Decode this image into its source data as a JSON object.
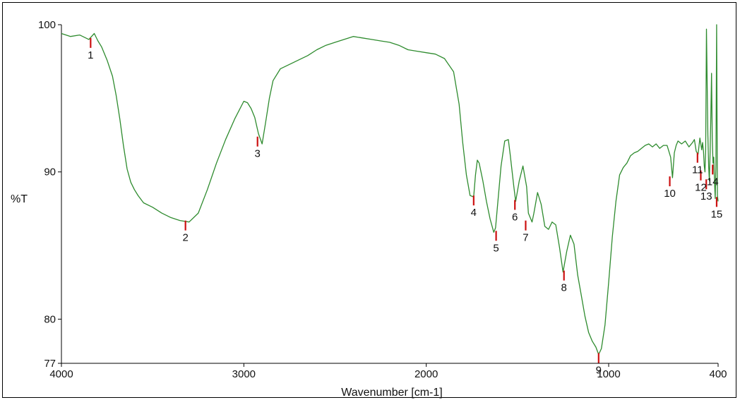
{
  "chart_data": {
    "type": "line",
    "xlabel": "Wavenumber [cm-1]",
    "ylabel": "%T",
    "xlim": [
      4000,
      400
    ],
    "ylim": [
      77,
      100
    ],
    "x_ticks": [
      "4000",
      "3000",
      "2000",
      "1000",
      "400"
    ],
    "y_ticks": [
      "100",
      "90",
      "80",
      "77"
    ],
    "x_tick_values": [
      4000,
      3000,
      2000,
      1000,
      400
    ],
    "y_tick_values": [
      100,
      90,
      80,
      77
    ],
    "line_color": "#2e8b2e",
    "marker_color": "#cc1111",
    "series": [
      {
        "x": [
          4000,
          3950,
          3900,
          3850,
          3820,
          3800,
          3780,
          3750,
          3720,
          3700,
          3680,
          3660,
          3640,
          3620,
          3600,
          3580,
          3550,
          3500,
          3450,
          3400,
          3350,
          3300,
          3250,
          3200,
          3150,
          3100,
          3050,
          3000,
          2980,
          2960,
          2940,
          2920,
          2900,
          2880,
          2860,
          2840,
          2800,
          2750,
          2700,
          2650,
          2600,
          2550,
          2500,
          2450,
          2400,
          2350,
          2300,
          2250,
          2200,
          2150,
          2100,
          2050,
          2000,
          1950,
          1900,
          1850,
          1820,
          1800,
          1780,
          1760,
          1740,
          1730,
          1720,
          1710,
          1690,
          1670,
          1650,
          1630,
          1620,
          1610,
          1590,
          1570,
          1550,
          1540,
          1520,
          1510,
          1490,
          1470,
          1450,
          1440,
          1420,
          1410,
          1390,
          1370,
          1350,
          1330,
          1310,
          1290,
          1270,
          1250,
          1230,
          1210,
          1190,
          1170,
          1150,
          1130,
          1110,
          1090,
          1070,
          1055,
          1040,
          1020,
          1000,
          980,
          960,
          940,
          920,
          900,
          880,
          860,
          840,
          820,
          800,
          780,
          760,
          740,
          720,
          700,
          680,
          660,
          650,
          640,
          630,
          620,
          600,
          580,
          560,
          540,
          530,
          520,
          510,
          500,
          490,
          485,
          480,
          476,
          472,
          468,
          464,
          460,
          456,
          452,
          448,
          444,
          440,
          436,
          432,
          428,
          424,
          420,
          416,
          412,
          408,
          404,
          400
        ],
        "y": [
          99.4,
          99.2,
          99.3,
          99.0,
          99.4,
          98.9,
          98.5,
          97.6,
          96.5,
          95.2,
          93.6,
          91.8,
          90.2,
          89.3,
          88.8,
          88.4,
          87.9,
          87.6,
          87.2,
          86.9,
          86.7,
          86.6,
          87.2,
          88.8,
          90.6,
          92.2,
          93.6,
          94.8,
          94.7,
          94.3,
          93.7,
          92.6,
          91.9,
          93.4,
          95.0,
          96.2,
          97.0,
          97.3,
          97.6,
          97.9,
          98.3,
          98.6,
          98.8,
          99.0,
          99.2,
          99.1,
          99.0,
          98.9,
          98.8,
          98.6,
          98.3,
          98.2,
          98.1,
          98.0,
          97.7,
          96.8,
          94.6,
          92.0,
          89.8,
          88.4,
          88.3,
          89.8,
          90.8,
          90.6,
          89.4,
          88.0,
          86.8,
          85.9,
          86.2,
          87.6,
          90.4,
          92.1,
          92.2,
          91.2,
          89.0,
          88.0,
          89.4,
          90.4,
          89.0,
          87.2,
          86.6,
          87.2,
          88.6,
          87.8,
          86.3,
          86.1,
          86.6,
          86.4,
          84.9,
          83.2,
          84.6,
          85.7,
          85.1,
          83.0,
          81.6,
          80.2,
          79.1,
          78.5,
          78.1,
          77.6,
          78.0,
          79.6,
          82.5,
          85.6,
          88.0,
          89.8,
          90.3,
          90.6,
          91.1,
          91.3,
          91.4,
          91.6,
          91.8,
          91.9,
          91.7,
          91.9,
          91.6,
          91.8,
          91.8,
          91.0,
          89.6,
          91.3,
          91.8,
          92.1,
          91.9,
          92.1,
          91.7,
          92.0,
          92.2,
          91.4,
          91.2,
          92.3,
          91.5,
          92.0,
          91.4,
          90.4,
          90.0,
          91.5,
          99.7,
          96.0,
          92.5,
          90.4,
          89.4,
          91.2,
          93.8,
          96.7,
          92.3,
          90.6,
          91.0,
          89.5,
          88.2,
          90.5,
          100.0,
          88.4,
          88.0
        ]
      }
    ],
    "peaks": [
      {
        "label": "1",
        "x": 3840,
        "y": 99.0
      },
      {
        "label": "2",
        "x": 3320,
        "y": 86.6
      },
      {
        "label": "3",
        "x": 2925,
        "y": 92.3
      },
      {
        "label": "4",
        "x": 1740,
        "y": 88.3
      },
      {
        "label": "5",
        "x": 1617,
        "y": 85.9
      },
      {
        "label": "6",
        "x": 1514,
        "y": 88.0
      },
      {
        "label": "7",
        "x": 1455,
        "y": 86.6
      },
      {
        "label": "8",
        "x": 1245,
        "y": 83.2
      },
      {
        "label": "9",
        "x": 1055,
        "y": 77.6
      },
      {
        "label": "10",
        "x": 665,
        "y": 89.6
      },
      {
        "label": "11",
        "x": 513,
        "y": 91.2
      },
      {
        "label": "12",
        "x": 495,
        "y": 90.0
      },
      {
        "label": "13",
        "x": 465,
        "y": 89.4
      },
      {
        "label": "14",
        "x": 430,
        "y": 90.4
      },
      {
        "label": "15",
        "x": 408,
        "y": 88.2
      }
    ]
  }
}
